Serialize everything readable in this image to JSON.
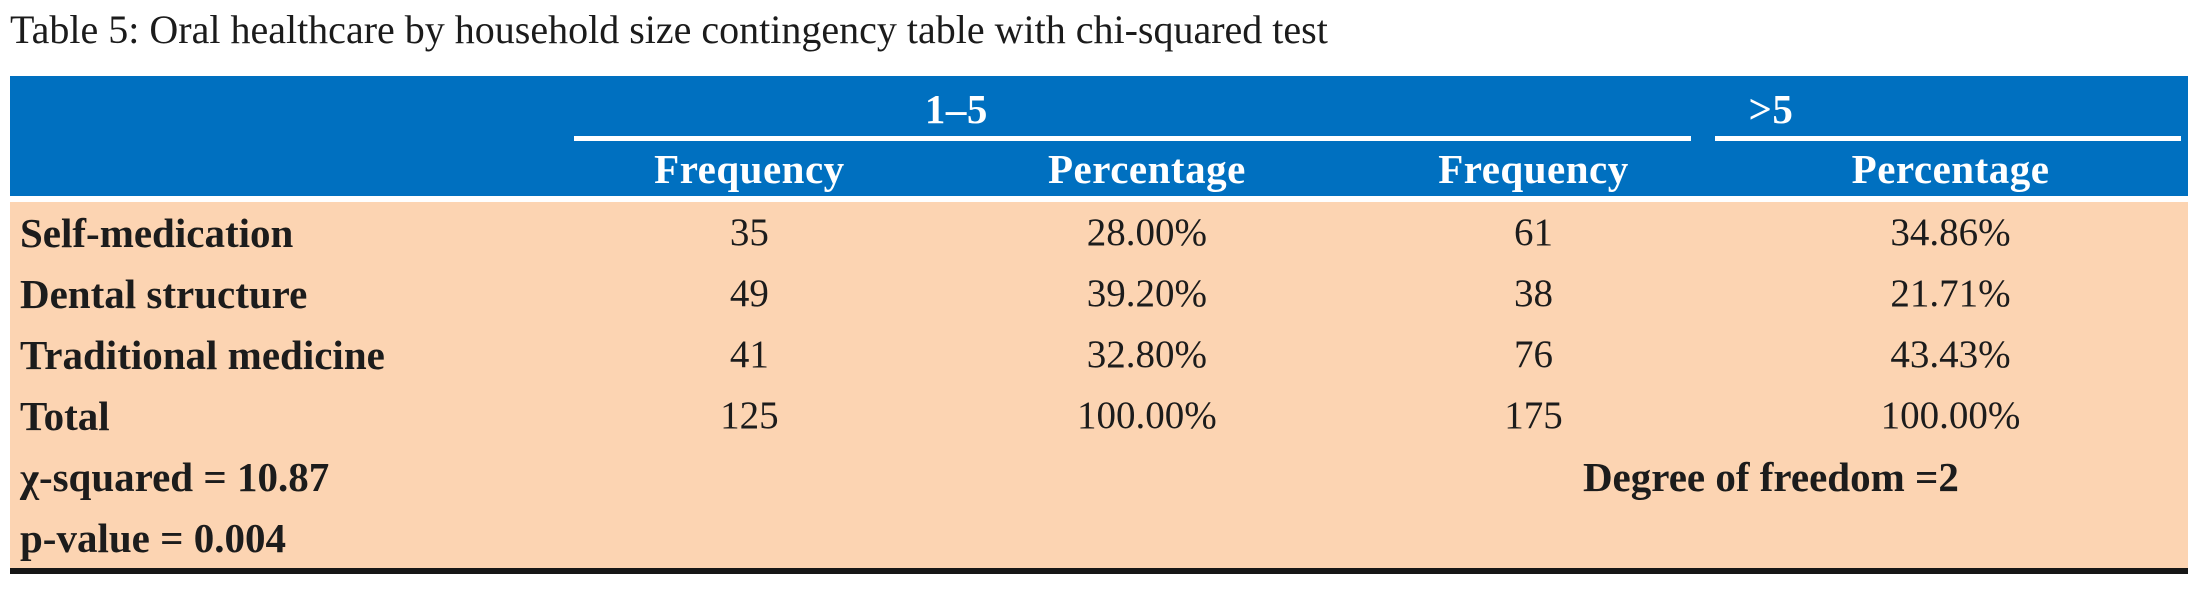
{
  "caption": "Table 5: Oral healthcare by household size contingency table with chi-squared test",
  "colors": {
    "header_bg": "#0070c0",
    "header_text": "#ffffff",
    "body_bg": "#fcd4b2",
    "bottom_border": "#161616"
  },
  "table": {
    "group_headers": [
      {
        "label": "1–5"
      },
      {
        "label": ">5"
      }
    ],
    "sub_headers": [
      "Frequency",
      "Percentage",
      "Frequency",
      "Percentage"
    ],
    "rows": [
      {
        "label": "Self-medication",
        "freq_1to5": "35",
        "pct_1to5": "28.00%",
        "freq_gt5": "61",
        "pct_gt5": "34.86%"
      },
      {
        "label": "Dental structure",
        "freq_1to5": "49",
        "pct_1to5": "39.20%",
        "freq_gt5": "38",
        "pct_gt5": "21.71%"
      },
      {
        "label": "Traditional medicine",
        "freq_1to5": "41",
        "pct_1to5": "32.80%",
        "freq_gt5": "76",
        "pct_gt5": "43.43%"
      },
      {
        "label": "Total",
        "freq_1to5": "125",
        "pct_1to5": "100.00%",
        "freq_gt5": "175",
        "pct_gt5": "100.00%"
      }
    ],
    "stats": {
      "chi_squared": "χ-squared = 10.87",
      "degrees_of_freedom": "Degree of freedom =2",
      "p_value": "p-value = 0.004"
    }
  }
}
